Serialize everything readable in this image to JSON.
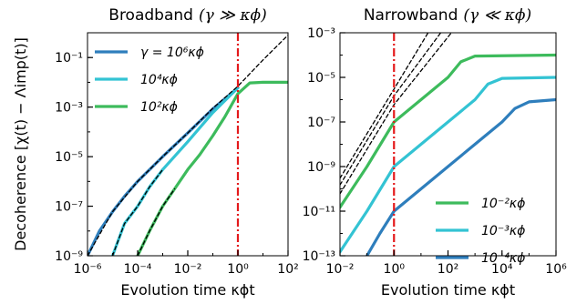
{
  "chart_data": [
    {
      "type": "line",
      "title": "Broadband (γ ≫ κ_ϕ)",
      "title_main": "Broadband",
      "title_math": "(γ ≫ κϕ)",
      "xlabel": "Evolution time κϕt",
      "ylabel": "Decoherence [χ(t) − Λimp(t)]",
      "xscale": "log",
      "yscale": "log",
      "xlim": [
        1e-06,
        100
      ],
      "ylim": [
        1e-09,
        1
      ],
      "xtick_labels": [
        "10⁻⁶",
        "10⁻⁴",
        "10⁻²",
        "10⁰",
        "10²"
      ],
      "xtick_values": [
        1e-06,
        0.0001,
        0.01,
        1,
        100
      ],
      "ytick_labels": [
        "10⁻⁹",
        "10⁻⁷",
        "10⁻⁵",
        "10⁻³",
        "10⁻¹"
      ],
      "ytick_values": [
        1e-09,
        1e-07,
        1e-05,
        0.001,
        0.1
      ],
      "legend_position": "top-left",
      "vline": {
        "x": 1,
        "style": "dash-dot",
        "color": "#e41a1c"
      },
      "series": [
        {
          "name": "γ = 10⁶κϕ",
          "color": "#2e7ebc",
          "style": "solid",
          "x": [
            1e-06,
            3e-06,
            1e-05,
            3e-05,
            0.0001,
            0.001,
            0.01,
            0.1,
            1
          ],
          "y": [
            1e-09,
            1e-08,
            6e-08,
            2.5e-07,
            1e-06,
            1e-05,
            9e-05,
            0.00085,
            0.006
          ]
        },
        {
          "name": "10⁴κϕ",
          "color": "#33c3d3",
          "style": "solid",
          "x": [
            1e-05,
            3e-05,
            0.0001,
            0.0003,
            0.001,
            0.01,
            0.1,
            1
          ],
          "y": [
            1e-09,
            2e-08,
            1e-07,
            6e-07,
            3e-06,
            4e-05,
            0.0006,
            0.006
          ]
        },
        {
          "name": "10²κϕ",
          "color": "#3dbb5c",
          "style": "solid",
          "x": [
            0.0001,
            0.0003,
            0.001,
            0.003,
            0.01,
            0.03,
            0.1,
            0.3,
            1,
            3,
            10,
            100
          ],
          "y": [
            1e-09,
            1e-08,
            1e-07,
            5e-07,
            3e-06,
            1.2e-05,
            7e-05,
            0.0004,
            0.0035,
            0.0095,
            0.01,
            0.01
          ]
        },
        {
          "name": "",
          "color": "#000000",
          "style": "dashed",
          "x": [
            1e-06,
            1e-05,
            0.0001,
            0.001,
            0.01,
            0.1,
            1,
            10,
            100
          ],
          "y": [
            1e-09,
            6e-08,
            1e-06,
            1e-05,
            9e-05,
            0.0009,
            0.007,
            0.08,
            0.8
          ]
        },
        {
          "name": "",
          "color": "#000000",
          "style": "dashed",
          "x": [
            1e-05,
            3e-05,
            0.0001,
            0.0003,
            0.001
          ],
          "y": [
            1e-09,
            2e-08,
            1e-07,
            6e-07,
            3e-06
          ]
        },
        {
          "name": "",
          "color": "#000000",
          "style": "dashed",
          "x": [
            0.0001,
            0.0003,
            0.001,
            0.003
          ],
          "y": [
            1e-09,
            1e-08,
            1e-07,
            5e-07
          ]
        }
      ]
    },
    {
      "type": "line",
      "title": "Narrowband (γ ≪ κ_ϕ)",
      "title_main": "Narrowband",
      "title_math": "(γ ≪ κϕ)",
      "xlabel": "Evolution time κϕt",
      "ylabel": "",
      "xscale": "log",
      "yscale": "log",
      "xlim": [
        0.01,
        1000000
      ],
      "ylim": [
        1e-13,
        0.001
      ],
      "xtick_labels": [
        "10⁻²",
        "10⁰",
        "10²",
        "10⁴",
        "10⁶"
      ],
      "xtick_values": [
        0.01,
        1,
        100,
        10000,
        1000000
      ],
      "ytick_labels": [
        "10⁻¹³",
        "10⁻¹¹",
        "10⁻⁹",
        "10⁻⁷",
        "10⁻⁵",
        "10⁻³"
      ],
      "ytick_values": [
        1e-13,
        1e-11,
        1e-09,
        1e-07,
        1e-05,
        0.001
      ],
      "legend_position": "bottom-right",
      "vline": {
        "x": 1,
        "style": "dash-dot",
        "color": "#e41a1c"
      },
      "series": [
        {
          "name": "10⁻²κϕ",
          "color": "#3dbb5c",
          "style": "solid",
          "x": [
            0.01,
            0.1,
            1,
            10,
            100,
            300,
            1000,
            1000000
          ],
          "y": [
            1.5e-11,
            1e-09,
            1e-07,
            1e-06,
            1e-05,
            5e-05,
            9e-05,
            0.0001
          ]
        },
        {
          "name": "10⁻³κϕ",
          "color": "#33c3d3",
          "style": "solid",
          "x": [
            0.01,
            0.1,
            1,
            10,
            100,
            1000,
            3000,
            10000,
            1000000
          ],
          "y": [
            1.5e-13,
            1e-11,
            1e-09,
            1e-08,
            1e-07,
            1e-06,
            5e-06,
            9e-06,
            1e-05
          ]
        },
        {
          "name": "10⁻⁴κϕ",
          "color": "#2e7ebc",
          "style": "solid",
          "x": [
            0.1,
            0.3,
            1,
            10,
            100,
            1000,
            10000,
            30000,
            100000,
            1000000
          ],
          "y": [
            1e-13,
            1e-12,
            1e-11,
            1e-10,
            1e-09,
            1e-08,
            1e-07,
            4e-07,
            8e-07,
            1e-06
          ]
        },
        {
          "name": "",
          "color": "#000000",
          "style": "dashed",
          "x": [
            0.01,
            1,
            20
          ],
          "y": [
            3e-10,
            3e-06,
            0.0012
          ]
        },
        {
          "name": "",
          "color": "#000000",
          "style": "dashed",
          "x": [
            0.01,
            1,
            60
          ],
          "y": [
            1.5e-10,
            1.5e-06,
            0.0012
          ]
        },
        {
          "name": "",
          "color": "#000000",
          "style": "dashed",
          "x": [
            0.01,
            1,
            150
          ],
          "y": [
            6e-11,
            6e-07,
            0.0012
          ]
        }
      ]
    }
  ]
}
